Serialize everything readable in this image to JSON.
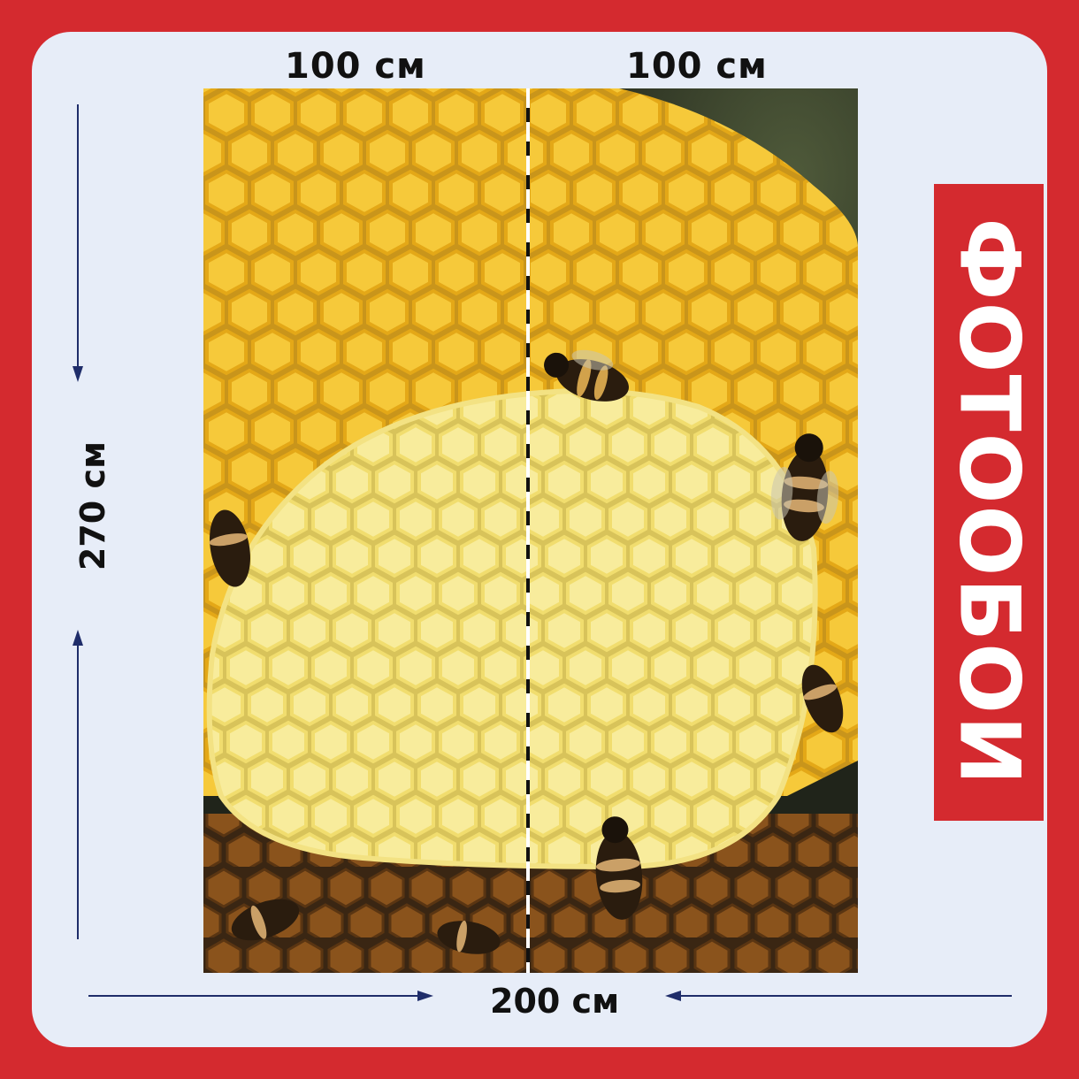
{
  "dimensions": {
    "top_left": "100 см",
    "top_right": "100 см",
    "height": "270  см",
    "width": "200  см"
  },
  "brand": {
    "text": "ФОТООБОИ"
  },
  "photo": {
    "subject": "honeycomb-with-bees"
  },
  "colors": {
    "frame": "#d42a2f",
    "panel": "#e7edf8",
    "arrow": "#1f2d6a",
    "comb_bright": "#f4c21a",
    "comb_pale": "#f7e78a"
  }
}
